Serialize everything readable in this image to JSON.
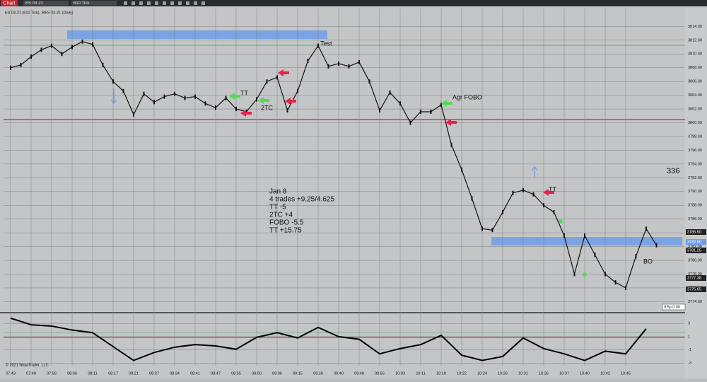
{
  "toolbar": {
    "app_button": "Chart",
    "instrument": "ES 03-21",
    "interval": "610 Tick"
  },
  "chart_data": [
    {
      "type": "line",
      "title": "ES 03-21 (610 Tick), MES 03-21 (Daily)",
      "categories": [
        "07:43",
        null,
        "07:49",
        null,
        "07:56",
        null,
        "08:06",
        null,
        "08:11",
        null,
        "08:17",
        null,
        "08:21",
        null,
        "08:27",
        null,
        "08:34",
        null,
        "08:41",
        null,
        "08:47",
        null,
        "08:55",
        null,
        "09:00",
        null,
        "09:06",
        null,
        "09:15",
        null,
        "09:26",
        null,
        "09:40",
        null,
        "09:48",
        null,
        "09:55",
        null,
        "10:03",
        null,
        "10:11",
        null,
        "10:18",
        null,
        "10:22",
        null,
        "10:24",
        null,
        "10:26",
        null,
        "10:31",
        null,
        "10:35",
        null,
        "10:37",
        null,
        "10:40",
        null,
        "10:42",
        null,
        "10:45",
        null,
        null,
        null
      ],
      "values": [
        3808.0,
        3808.4,
        3809.6,
        3810.6,
        3811.2,
        3810.0,
        3811.0,
        3811.8,
        3811.4,
        3808.4,
        3806.0,
        3804.6,
        3801.2,
        3804.2,
        3803.0,
        3803.8,
        3804.2,
        3803.6,
        3803.8,
        3802.8,
        3802.2,
        3803.6,
        3802.0,
        3801.6,
        3803.4,
        3806.0,
        3806.6,
        3801.8,
        3804.6,
        3809.0,
        3811.2,
        3808.2,
        3808.6,
        3808.2,
        3808.8,
        3806.0,
        3801.8,
        3804.4,
        3802.8,
        3800.0,
        3801.6,
        3801.6,
        3802.6,
        3796.8,
        3793.2,
        3789.0,
        3784.6,
        3784.4,
        3787.0,
        3789.8,
        3790.2,
        3789.6,
        3788.0,
        3787.0,
        3783.6,
        3778.0,
        3783.6,
        3780.8,
        3778.0,
        3776.8,
        3776.0,
        3780.6,
        3784.6,
        3782.2
      ],
      "color": "#111111",
      "ylim": [
        3772.6,
        3816.3
      ],
      "yticks": [
        {
          "value": 3814,
          "label": "3814.00"
        },
        {
          "value": 3812,
          "label": "3812.00"
        },
        {
          "value": 3810,
          "label": "3810.00"
        },
        {
          "value": 3808,
          "label": "3808.00"
        },
        {
          "value": 3806,
          "label": "3806.00"
        },
        {
          "value": 3804,
          "label": "3804.00"
        },
        {
          "value": 3802,
          "label": "3802.00"
        },
        {
          "value": 3800,
          "label": "3800.00"
        },
        {
          "value": 3798,
          "label": "3798.00"
        },
        {
          "value": 3796,
          "label": "3796.00"
        },
        {
          "value": 3794,
          "label": "3794.00"
        },
        {
          "value": 3792,
          "label": "3792.00"
        },
        {
          "value": 3790,
          "label": "3790.00"
        },
        {
          "value": 3788,
          "label": "3788.00"
        },
        {
          "value": 3786,
          "label": "3786.00"
        },
        {
          "value": 3784,
          "label": "3784.00"
        },
        {
          "value": 3782,
          "label": "3782.00"
        },
        {
          "value": 3780,
          "label": "3780.00"
        },
        {
          "value": 3778,
          "label": "3778.00"
        },
        {
          "value": 3776,
          "label": "3776.00"
        },
        {
          "value": 3774,
          "label": "3774.00"
        }
      ],
      "grid": true
    },
    {
      "type": "line",
      "values": [
        3.8,
        2.8,
        2.6,
        2.0,
        1.6,
        -0.5,
        -2.6,
        -1.4,
        -0.6,
        -0.2,
        -0.4,
        -0.9,
        0.9,
        1.6,
        0.8,
        2.4,
        1.0,
        0.6,
        -1.6,
        -0.8,
        -0.2,
        1.2,
        -1.8,
        -2.6,
        -2.0,
        0.8,
        -0.8,
        -1.6,
        -2.6,
        -1.2,
        -1.6,
        2.2
      ],
      "color": "#000000",
      "ylim": [
        -3.4,
        4.2
      ],
      "yticks": [
        3,
        1,
        -1,
        -3
      ]
    }
  ],
  "price_tags": [
    "3786.50",
    "3782.50",
    "3781.25",
    "3777.38",
    "3775.65"
  ],
  "status_tag": "0.5p 0.00",
  "counter": "336",
  "annotations": {
    "test": "Test",
    "tt1": "TT",
    "tc": "2TC",
    "fobo": "Agr FOBO",
    "tt2": "TT",
    "bo": "BO"
  },
  "notes": [
    "Jan 8",
    "4 trades  +9.25/4.625",
    "TT  -5",
    "2TC  +4",
    "FOBO  -5.5",
    "TT  +15.75"
  ],
  "copyright": "© 2021 NinjaTrader, LLC"
}
